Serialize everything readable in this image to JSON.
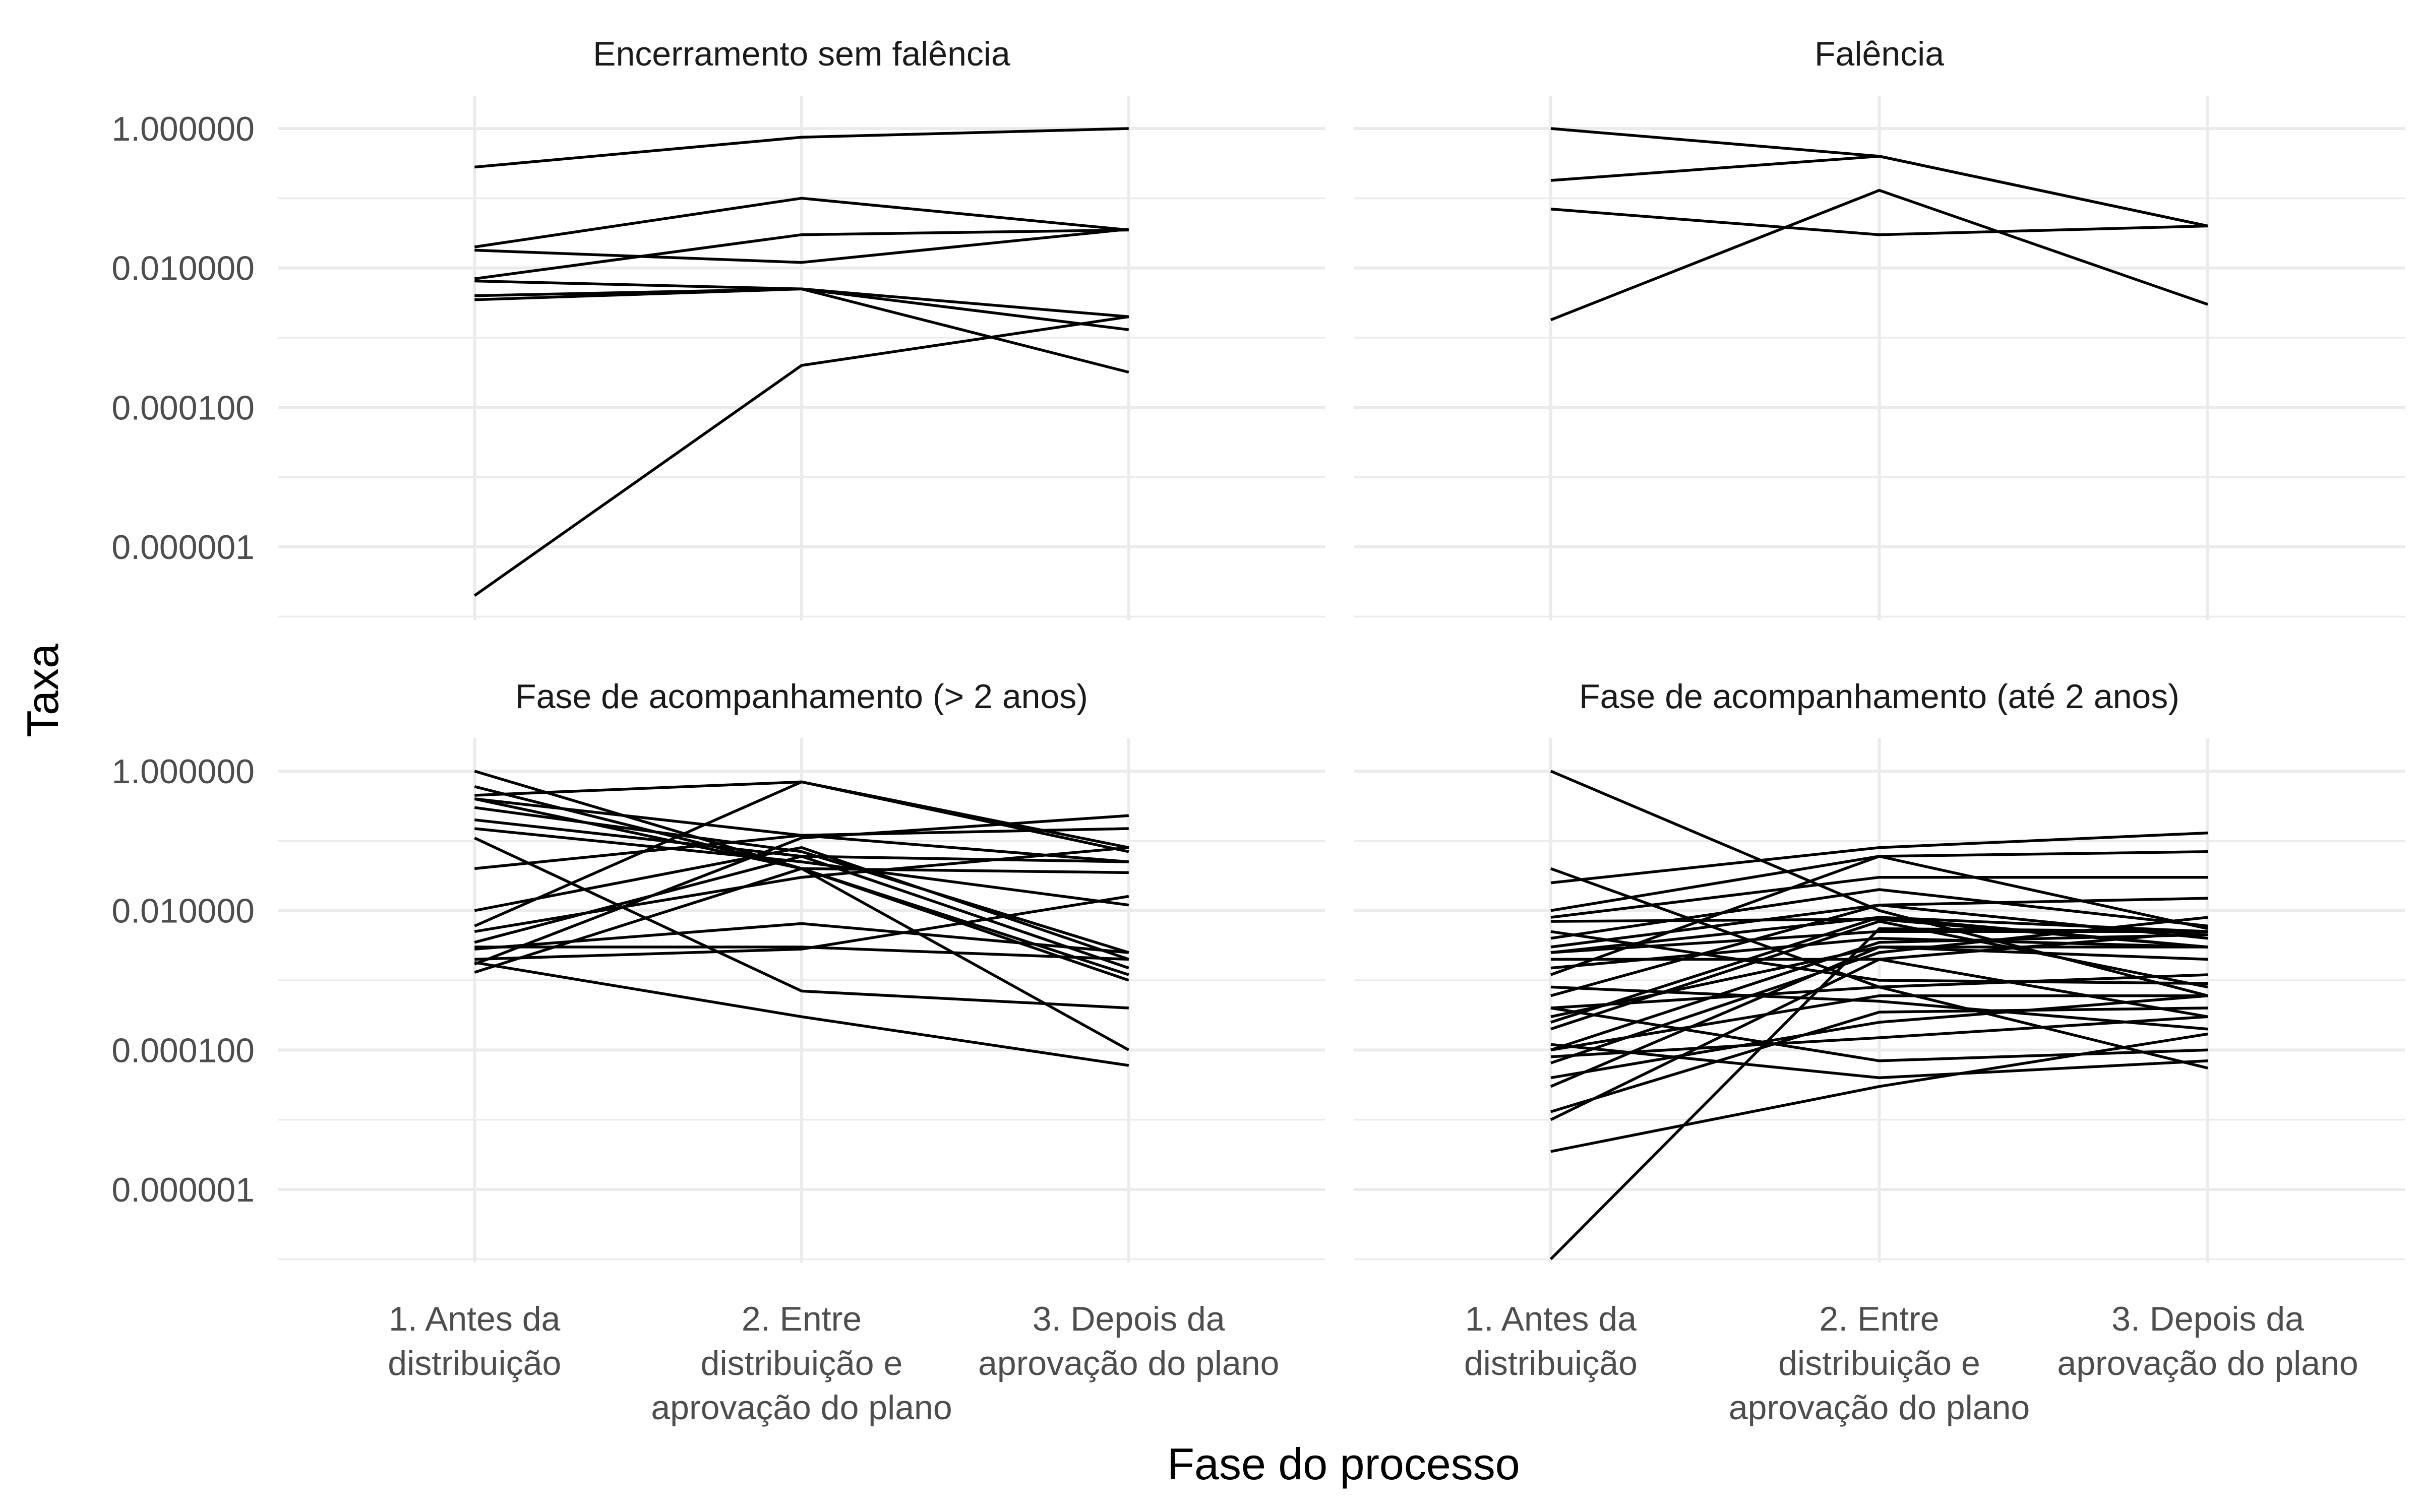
{
  "chart_data": {
    "type": "line",
    "layout": "facet-grid-2x2",
    "xlabel": "Fase do processo",
    "ylabel": "Taxa",
    "y_scale": "log10",
    "ylim": [
      2e-07,
      1.6
    ],
    "y_ticks": [
      1,
      0.01,
      0.0001,
      1e-06
    ],
    "y_tick_labels": [
      "1.000000",
      "0.010000",
      "0.000100",
      "0.000001"
    ],
    "grid": true,
    "x_categories": [
      {
        "lines": [
          "1. Antes da",
          "distribuição"
        ]
      },
      {
        "lines": [
          "2. Entre",
          "distribuição e",
          "aprovação do plano"
        ]
      },
      {
        "lines": [
          "3. Depois da",
          "aprovação do plano"
        ]
      }
    ],
    "panels": [
      {
        "title": "Encerramento sem falência",
        "series": [
          {
            "values": [
              0.28,
              0.75,
              1.0
            ]
          },
          {
            "values": [
              0.02,
              0.1,
              0.035
            ]
          },
          {
            "values": [
              0.018,
              0.012,
              0.036
            ]
          },
          {
            "values": [
              0.007,
              0.03,
              0.035
            ]
          },
          {
            "values": [
              0.0065,
              0.005,
              0.0013
            ]
          },
          {
            "values": [
              0.004,
              0.005,
              0.00032
            ]
          },
          {
            "values": [
              0.0035,
              0.005,
              0.002
            ]
          },
          {
            "values": [
              2e-07,
              0.0004,
              0.002
            ]
          }
        ]
      },
      {
        "title": "Falência",
        "series": [
          {
            "values": [
              1.0,
              0.4,
              0.04
            ]
          },
          {
            "values": [
              0.18,
              0.4,
              0.04
            ]
          },
          {
            "values": [
              0.07,
              0.03,
              0.04
            ]
          },
          {
            "values": [
              0.0018,
              0.13,
              0.003
            ]
          }
        ]
      },
      {
        "title": "Fase de acompanhamento (> 2 anos)",
        "series": [
          {
            "values": [
              1.0,
              0.04,
              0.0001
            ]
          },
          {
            "values": [
              0.6,
              0.04,
              0.001
            ]
          },
          {
            "values": [
              0.45,
              0.7,
              0.08
            ]
          },
          {
            "values": [
              0.4,
              0.12,
              0.05
            ]
          },
          {
            "values": [
              0.3,
              0.07,
              0.0025
            ]
          },
          {
            "values": [
              0.2,
              0.06,
              0.0015
            ]
          },
          {
            "values": [
              0.11,
              0.0007,
              0.0004
            ]
          },
          {
            "values": [
              0.04,
              0.12,
              0.15
            ]
          },
          {
            "values": [
              0.01,
              0.08,
              0.002
            ]
          },
          {
            "values": [
              0.006,
              0.7,
              0.07
            ]
          },
          {
            "values": [
              0.0035,
              0.06,
              0.05
            ]
          },
          {
            "values": [
              0.003,
              0.003,
              0.002
            ]
          },
          {
            "values": [
              0.002,
              0.0028,
              0.016
            ]
          },
          {
            "values": [
              0.0028,
              0.0065,
              0.0025
            ]
          },
          {
            "values": [
              0.0018,
              0.0003,
              6e-05
            ]
          },
          {
            "values": [
              0.0013,
              0.04,
              0.035
            ]
          },
          {
            "values": [
              0.0017,
              0.11,
              0.23
            ]
          },
          {
            "values": [
              0.005,
              0.03,
              0.08
            ]
          },
          {
            "values": [
              0.4,
              0.04,
              0.0012
            ]
          },
          {
            "values": [
              0.15,
              0.05,
              0.012
            ]
          }
        ]
      },
      {
        "title": "Fase de acompanhamento (até 2 anos)",
        "series": [
          {
            "values": [
              1.0,
              0.01,
              0.0006
            ]
          },
          {
            "values": [
              0.04,
              0.0008,
              5.5e-05
            ]
          },
          {
            "values": [
              0.025,
              0.08,
              0.13
            ]
          },
          {
            "values": [
              0.01,
              0.06,
              0.07
            ]
          },
          {
            "values": [
              0.008,
              0.03,
              0.03
            ]
          },
          {
            "values": [
              0.007,
              0.0075,
              0.003
            ]
          },
          {
            "values": [
              0.004,
              0.02,
              0.006
            ]
          },
          {
            "values": [
              0.003,
              0.012,
              0.004
            ]
          },
          {
            "values": [
              0.0025,
              0.005,
              0.005
            ]
          },
          {
            "values": [
              0.002,
              0.002,
              0.0003
            ]
          },
          {
            "values": [
              0.0015,
              0.004,
              0.003
            ]
          },
          {
            "values": [
              0.0008,
              0.0005,
              0.0002
            ]
          },
          {
            "values": [
              0.0006,
              0.012,
              0.015
            ]
          },
          {
            "values": [
              0.0004,
              7e-05,
              0.0001
            ]
          },
          {
            "values": [
              0.0003,
              0.003,
              0.003
            ]
          },
          {
            "values": [
              0.00025,
              0.008,
              0.005
            ]
          },
          {
            "values": [
              0.00012,
              4e-05,
              7e-05
            ]
          },
          {
            "values": [
              0.0001,
              0.0006,
              0.0006
            ]
          },
          {
            "values": [
              8e-05,
              0.00015,
              0.0003
            ]
          },
          {
            "values": [
              6.5e-05,
              0.0025,
              0.008
            ]
          },
          {
            "values": [
              4e-05,
              0.00025,
              0.0006
            ]
          },
          {
            "values": [
              3e-05,
              0.003,
              0.002
            ]
          },
          {
            "values": [
              1.3e-05,
              0.00035,
              0.0004
            ]
          },
          {
            "values": [
              1e-05,
              0.002,
              0.005
            ]
          },
          {
            "values": [
              3.5e-06,
              3e-05,
              0.00017
            ]
          },
          {
            "values": [
              1e-07,
              0.0055,
              0.005
            ]
          },
          {
            "values": [
              0.0012,
              0.06,
              0.0055
            ]
          },
          {
            "values": [
              0.0002,
              0.007,
              0.0008
            ]
          },
          {
            "values": [
              0.0004,
              0.0008,
              0.0012
            ]
          },
          {
            "values": [
              0.0025,
              0.008,
              0.003
            ]
          },
          {
            "values": [
              0.005,
              0.001,
              0.0009
            ]
          },
          {
            "values": [
              0.0001,
              0.0035,
              0.0045
            ]
          }
        ]
      }
    ]
  }
}
